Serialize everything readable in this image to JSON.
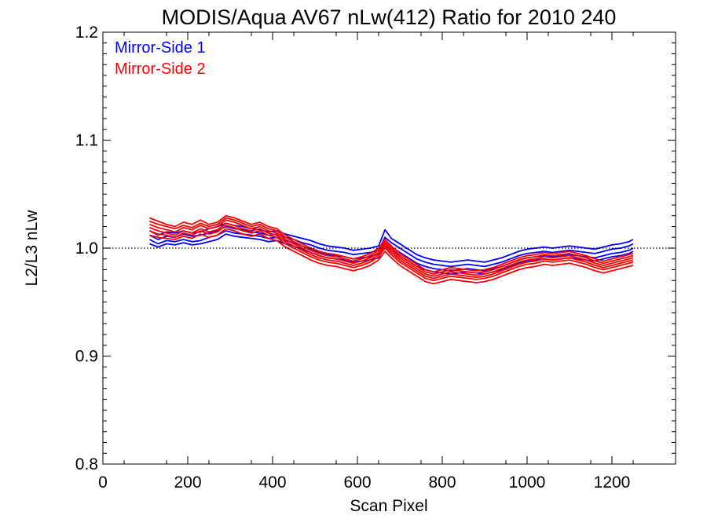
{
  "chart_data": {
    "type": "line",
    "title": "MODIS/Aqua AV67 nLw(412) Ratio for 2010 240",
    "xlabel": "Scan Pixel",
    "ylabel": "L2/L3 nLw",
    "xlim": [
      0,
      1350
    ],
    "ylim": [
      0.8,
      1.2
    ],
    "x_ticks": [
      0,
      200,
      400,
      600,
      800,
      1000,
      1200
    ],
    "x_tick_labels": [
      "0",
      "200",
      "400",
      "600",
      "800",
      "1000",
      "1200"
    ],
    "y_ticks": [
      0.8,
      0.9,
      1.0,
      1.1,
      1.2
    ],
    "y_tick_labels": [
      "0.8",
      "0.9",
      "1.0",
      "1.1",
      "1.2"
    ],
    "reference_line": 1.0,
    "legend_position": "top-left",
    "x": [
      110,
      130,
      150,
      170,
      190,
      210,
      230,
      250,
      270,
      290,
      310,
      330,
      350,
      370,
      390,
      410,
      430,
      450,
      470,
      490,
      510,
      530,
      550,
      570,
      590,
      610,
      630,
      650,
      665,
      680,
      700,
      720,
      740,
      760,
      780,
      800,
      820,
      840,
      860,
      880,
      900,
      920,
      940,
      960,
      980,
      1000,
      1020,
      1040,
      1060,
      1080,
      1100,
      1120,
      1140,
      1160,
      1180,
      1200,
      1220,
      1240,
      1250
    ],
    "series": [
      {
        "name": "Mirror-Side 1",
        "color": "#0000ff",
        "lines": [
          [
            1.012,
            1.008,
            1.011,
            1.01,
            1.013,
            1.011,
            1.012,
            1.014,
            1.016,
            1.02,
            1.018,
            1.017,
            1.015,
            1.014,
            1.012,
            1.013,
            1.01,
            1.008,
            1.005,
            1.003,
            1.0,
            0.998,
            0.997,
            0.996,
            0.994,
            0.995,
            0.996,
            0.998,
            1.01,
            1.005,
            1.0,
            0.995,
            0.99,
            0.987,
            0.985,
            0.984,
            0.983,
            0.984,
            0.985,
            0.984,
            0.983,
            0.985,
            0.987,
            0.99,
            0.993,
            0.995,
            0.996,
            0.997,
            0.996,
            0.997,
            0.998,
            0.997,
            0.996,
            0.995,
            0.997,
            0.999,
            1.0,
            1.002,
            1.004
          ],
          [
            1.008,
            1.004,
            1.007,
            1.006,
            1.008,
            1.006,
            1.007,
            1.01,
            1.012,
            1.016,
            1.014,
            1.013,
            1.012,
            1.011,
            1.009,
            1.01,
            1.007,
            1.005,
            1.002,
            0.999,
            0.996,
            0.994,
            0.993,
            0.992,
            0.99,
            0.991,
            0.992,
            0.995,
            1.005,
            1.001,
            0.996,
            0.991,
            0.986,
            0.983,
            0.981,
            0.98,
            0.979,
            0.98,
            0.981,
            0.98,
            0.979,
            0.981,
            0.983,
            0.986,
            0.989,
            0.991,
            0.992,
            0.993,
            0.992,
            0.993,
            0.994,
            0.993,
            0.992,
            0.991,
            0.993,
            0.995,
            0.996,
            0.998,
            1.0
          ],
          [
            1.016,
            1.012,
            1.015,
            1.014,
            1.016,
            1.014,
            1.015,
            1.018,
            1.02,
            1.023,
            1.021,
            1.02,
            1.018,
            1.017,
            1.015,
            1.016,
            1.013,
            1.011,
            1.009,
            1.007,
            1.004,
            1.002,
            1.001,
            1.0,
            0.998,
            0.999,
            1.0,
            1.002,
            1.017,
            1.009,
            1.004,
            0.999,
            0.994,
            0.991,
            0.989,
            0.988,
            0.987,
            0.988,
            0.989,
            0.988,
            0.987,
            0.989,
            0.991,
            0.994,
            0.997,
            0.999,
            1.0,
            1.001,
            1.0,
            1.001,
            1.002,
            1.001,
            1.0,
            0.999,
            1.001,
            1.003,
            1.004,
            1.006,
            1.008
          ],
          [
            1.004,
            1.001,
            1.004,
            1.003,
            1.005,
            1.003,
            1.004,
            1.006,
            1.008,
            1.013,
            1.011,
            1.01,
            1.009,
            1.008,
            1.006,
            1.007,
            1.004,
            1.002,
            0.999,
            0.996,
            0.993,
            0.991,
            0.99,
            0.989,
            0.987,
            0.988,
            0.989,
            0.991,
            1.002,
            0.998,
            0.993,
            0.988,
            0.983,
            0.98,
            0.978,
            0.977,
            0.976,
            0.977,
            0.978,
            0.977,
            0.976,
            0.978,
            0.98,
            0.983,
            0.986,
            0.988,
            0.989,
            0.99,
            0.989,
            0.99,
            0.991,
            0.99,
            0.989,
            0.988,
            0.99,
            0.992,
            0.993,
            0.995,
            0.997
          ]
        ]
      },
      {
        "name": "Mirror-Side 2",
        "color": "#ff0000",
        "lines": [
          [
            1.028,
            1.025,
            1.022,
            1.02,
            1.024,
            1.022,
            1.026,
            1.022,
            1.024,
            1.03,
            1.028,
            1.025,
            1.022,
            1.024,
            1.02,
            1.018,
            1.012,
            1.008,
            1.004,
            1.0,
            0.997,
            0.995,
            0.994,
            0.992,
            0.99,
            0.992,
            0.995,
            1.0,
            1.008,
            1.002,
            0.995,
            0.99,
            0.985,
            0.98,
            0.978,
            0.98,
            0.982,
            0.981,
            0.98,
            0.979,
            0.98,
            0.982,
            0.985,
            0.988,
            0.991,
            0.993,
            0.994,
            0.996,
            0.995,
            0.996,
            0.997,
            0.995,
            0.993,
            0.99,
            0.988,
            0.99,
            0.992,
            0.994,
            0.995
          ],
          [
            1.022,
            1.019,
            1.017,
            1.015,
            1.019,
            1.017,
            1.021,
            1.018,
            1.02,
            1.026,
            1.024,
            1.021,
            1.018,
            1.02,
            1.016,
            1.014,
            1.008,
            1.004,
            1.0,
            0.996,
            0.993,
            0.991,
            0.99,
            0.988,
            0.986,
            0.988,
            0.991,
            0.996,
            1.004,
            0.998,
            0.991,
            0.986,
            0.981,
            0.976,
            0.974,
            0.976,
            0.978,
            0.977,
            0.976,
            0.975,
            0.976,
            0.978,
            0.981,
            0.984,
            0.987,
            0.989,
            0.99,
            0.992,
            0.991,
            0.992,
            0.993,
            0.991,
            0.989,
            0.986,
            0.984,
            0.986,
            0.988,
            0.99,
            0.991
          ],
          [
            1.016,
            1.013,
            1.012,
            1.01,
            1.014,
            1.012,
            1.016,
            1.013,
            1.015,
            1.021,
            1.019,
            1.016,
            1.014,
            1.016,
            1.012,
            1.01,
            1.004,
            1.0,
            0.996,
            0.992,
            0.989,
            0.987,
            0.986,
            0.984,
            0.982,
            0.984,
            0.987,
            0.992,
            1.0,
            0.994,
            0.987,
            0.982,
            0.977,
            0.972,
            0.97,
            0.972,
            0.974,
            0.973,
            0.972,
            0.971,
            0.972,
            0.974,
            0.977,
            0.98,
            0.983,
            0.985,
            0.986,
            0.988,
            0.987,
            0.988,
            0.989,
            0.987,
            0.985,
            0.982,
            0.98,
            0.982,
            0.984,
            0.986,
            0.987
          ],
          [
            1.012,
            1.01,
            1.009,
            1.008,
            1.011,
            1.009,
            1.013,
            1.01,
            1.012,
            1.018,
            1.016,
            1.013,
            1.011,
            1.013,
            1.009,
            1.007,
            1.001,
            0.997,
            0.993,
            0.989,
            0.986,
            0.984,
            0.983,
            0.981,
            0.979,
            0.981,
            0.984,
            0.989,
            0.997,
            0.991,
            0.984,
            0.979,
            0.974,
            0.969,
            0.967,
            0.969,
            0.971,
            0.97,
            0.969,
            0.968,
            0.969,
            0.971,
            0.974,
            0.977,
            0.98,
            0.982,
            0.983,
            0.985,
            0.984,
            0.985,
            0.986,
            0.984,
            0.982,
            0.979,
            0.977,
            0.979,
            0.981,
            0.983,
            0.984
          ],
          [
            1.025,
            1.022,
            1.02,
            1.018,
            1.021,
            1.019,
            1.023,
            1.02,
            1.022,
            1.028,
            1.026,
            1.023,
            1.02,
            1.022,
            1.018,
            1.016,
            1.01,
            1.006,
            1.002,
            0.998,
            0.995,
            0.993,
            0.992,
            0.99,
            0.988,
            0.99,
            0.993,
            0.998,
            1.006,
            1.0,
            0.993,
            0.988,
            0.983,
            0.978,
            0.976,
            0.978,
            0.98,
            0.979,
            0.978,
            0.977,
            0.978,
            0.98,
            0.983,
            0.986,
            0.989,
            0.991,
            0.992,
            0.994,
            0.993,
            0.994,
            0.995,
            0.993,
            0.991,
            0.988,
            0.986,
            0.988,
            0.99,
            0.992,
            0.993
          ],
          [
            1.019,
            1.016,
            1.014,
            1.012,
            1.016,
            1.014,
            1.018,
            1.015,
            1.017,
            1.023,
            1.021,
            1.018,
            1.016,
            1.018,
            1.014,
            1.012,
            1.006,
            1.002,
            0.998,
            0.994,
            0.991,
            0.989,
            0.988,
            0.986,
            0.984,
            0.986,
            0.989,
            0.994,
            1.002,
            0.996,
            0.989,
            0.984,
            0.979,
            0.974,
            0.972,
            0.974,
            0.976,
            0.975,
            0.974,
            0.973,
            0.974,
            0.976,
            0.979,
            0.982,
            0.985,
            0.987,
            0.988,
            0.99,
            0.989,
            0.99,
            0.991,
            0.989,
            0.987,
            0.984,
            0.982,
            0.984,
            0.986,
            0.988,
            0.989
          ]
        ]
      }
    ]
  }
}
